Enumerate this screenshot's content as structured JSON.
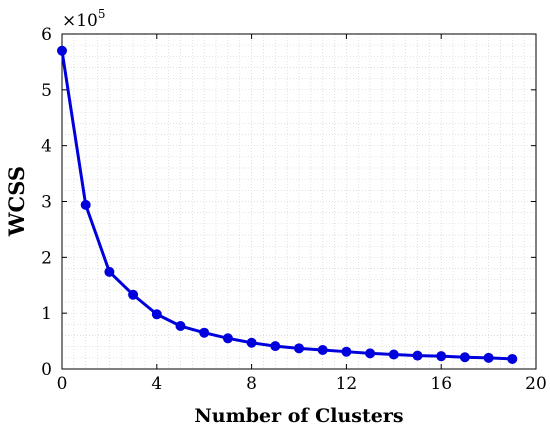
{
  "chart_data": {
    "type": "line",
    "title": "",
    "xlabel": "Number of Clusters",
    "ylabel": "WCSS",
    "y_multiplier_base": "×10",
    "y_multiplier_exponent": "5",
    "xlim": [
      0,
      20
    ],
    "ylim": [
      0,
      600000
    ],
    "x_ticks": [
      0,
      4,
      8,
      12,
      16,
      20
    ],
    "y_ticks": [
      0,
      100000,
      200000,
      300000,
      400000,
      500000,
      600000
    ],
    "x_tick_labels": [
      "0",
      "4",
      "8",
      "12",
      "16",
      "20"
    ],
    "y_tick_labels": [
      "0",
      "1",
      "2",
      "3",
      "4",
      "5",
      "6"
    ],
    "grid": true,
    "grid_style": "dotted-minor",
    "legend": false,
    "series": [
      {
        "color": "#0000dd",
        "marker": "circle",
        "x": [
          0,
          1,
          2,
          3,
          4,
          5,
          6,
          7,
          8,
          9,
          10,
          11,
          12,
          13,
          14,
          15,
          16,
          17,
          18,
          19
        ],
        "values": [
          570000,
          294000,
          174000,
          133000,
          98000,
          77000,
          65000,
          55000,
          47000,
          41000,
          37000,
          34000,
          31000,
          28000,
          26000,
          24000,
          23000,
          21000,
          20000,
          18000
        ]
      }
    ]
  }
}
